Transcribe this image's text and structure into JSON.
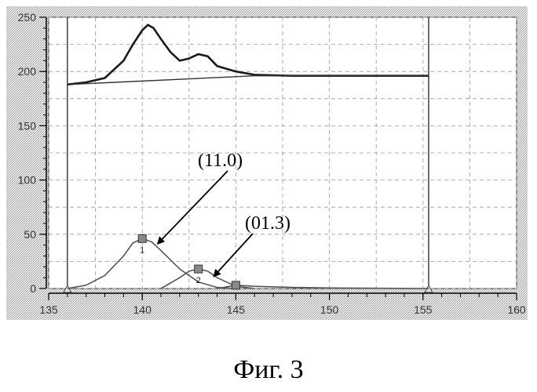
{
  "caption": "Фиг. 3",
  "chart_data": {
    "type": "line",
    "xlim": [
      135,
      160
    ],
    "ylim": [
      0,
      250
    ],
    "x_ticks": [
      135,
      140,
      145,
      150,
      155,
      160
    ],
    "y_ticks": [
      0,
      50,
      100,
      150,
      200,
      250
    ],
    "grid": true,
    "cursor_x": [
      136,
      155.3
    ],
    "series": [
      {
        "role": "measured",
        "x": [
          136,
          137,
          138,
          139,
          139.5,
          140,
          140.3,
          140.6,
          141,
          141.5,
          142,
          142.5,
          143,
          143.5,
          144,
          145,
          146,
          148,
          150,
          152,
          154,
          155.3
        ],
        "y": [
          188,
          190,
          194,
          210,
          225,
          238,
          243,
          240,
          230,
          218,
          210,
          212,
          216,
          214,
          205,
          200,
          197,
          196,
          196,
          196,
          196,
          196
        ]
      },
      {
        "role": "baseline",
        "x": [
          136,
          146,
          155.3
        ],
        "y": [
          188,
          196,
          196
        ]
      },
      {
        "role": "peak",
        "marker_label": "1",
        "x": [
          136,
          137,
          138,
          139,
          139.5,
          140,
          140.5,
          141,
          142,
          143,
          144,
          145
        ],
        "y": [
          0,
          3,
          12,
          30,
          42,
          46,
          43,
          35,
          18,
          6,
          1,
          0
        ]
      },
      {
        "role": "peak",
        "marker_label": "2",
        "x": [
          141,
          142,
          142.5,
          143,
          143.5,
          144,
          145,
          146
        ],
        "y": [
          0,
          10,
          16,
          18,
          16,
          10,
          2,
          0
        ]
      },
      {
        "role": "peak",
        "x": [
          144,
          145,
          146,
          148,
          150,
          155.3
        ],
        "y": [
          0,
          3,
          2,
          1,
          0.5,
          0
        ]
      }
    ],
    "markers": [
      {
        "x": 140,
        "y": 46,
        "label": "1"
      },
      {
        "x": 143,
        "y": 18,
        "label": "2"
      },
      {
        "x": 145,
        "y": 3,
        "label": ""
      }
    ],
    "annotations": [
      {
        "text": "(11.0)",
        "target": {
          "x": 140.5,
          "y": 40
        }
      },
      {
        "text": "(01.3)",
        "target": {
          "x": 143.5,
          "y": 10
        }
      }
    ]
  }
}
